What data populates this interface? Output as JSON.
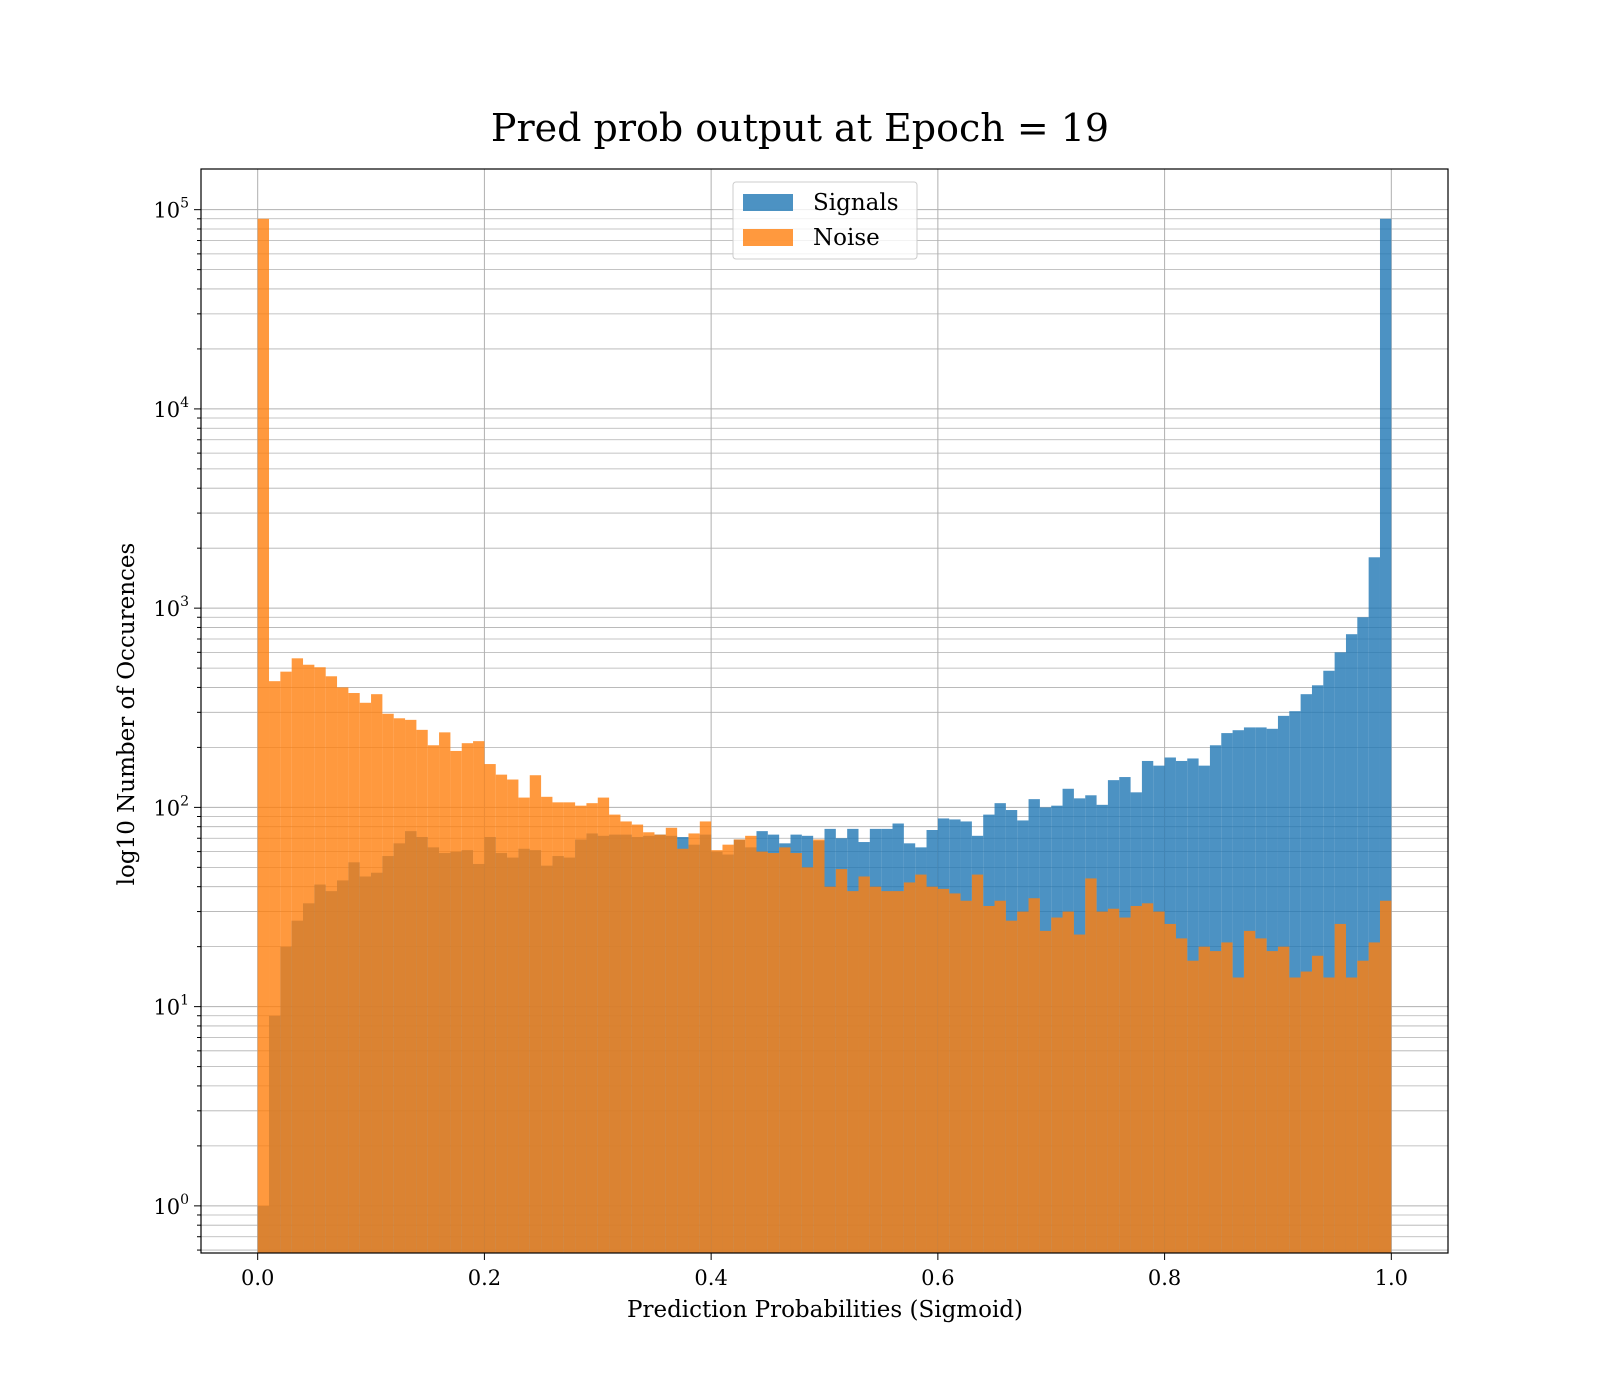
{
  "chart_data": {
    "type": "bar",
    "title": "Pred prob output at Epoch = 19",
    "xlabel": "Prediction Probabilities (Sigmoid)",
    "ylabel": "log10 Number of Occurences",
    "y_scale": "log",
    "xlim": [
      -0.05,
      1.05
    ],
    "ylim": [
      0.58,
      160000
    ],
    "x_ticks": [
      "0.0",
      "0.2",
      "0.4",
      "0.6",
      "0.8",
      "1.0"
    ],
    "y_ticks": [
      {
        "base": "10",
        "exp": "0"
      },
      {
        "base": "10",
        "exp": "1"
      },
      {
        "base": "10",
        "exp": "2"
      },
      {
        "base": "10",
        "exp": "3"
      },
      {
        "base": "10",
        "exp": "4"
      },
      {
        "base": "10",
        "exp": "5"
      }
    ],
    "grid": true,
    "legend_position": "top-center",
    "bin_start": 0.0,
    "bin_width": 0.01,
    "bins": 100,
    "series": [
      {
        "name": "Signals",
        "color": "#1f77b4",
        "values": [
          1,
          9,
          20,
          27,
          33,
          41,
          38,
          43,
          53,
          45,
          47,
          57,
          66,
          76,
          71,
          63,
          59,
          60,
          61,
          52,
          71,
          59,
          56,
          62,
          61,
          51,
          57,
          56,
          69,
          74,
          72,
          73,
          73,
          71,
          72,
          73,
          72,
          71,
          65,
          73,
          60,
          58,
          69,
          63,
          76,
          73,
          66,
          73,
          72,
          68,
          78,
          70,
          78,
          67,
          78,
          78,
          83,
          66,
          63,
          77,
          88,
          87,
          85,
          72,
          92,
          105,
          97,
          86,
          110,
          100,
          102,
          124,
          111,
          115,
          103,
          137,
          142,
          119,
          171,
          162,
          178,
          171,
          176,
          162,
          205,
          236,
          244,
          252,
          252,
          248,
          288,
          304,
          370,
          410,
          485,
          600,
          740,
          900,
          1800,
          90000
        ]
      },
      {
        "name": "Noise",
        "color": "#ff7f0e",
        "values": [
          90000,
          430,
          480,
          560,
          520,
          505,
          455,
          400,
          375,
          335,
          370,
          295,
          280,
          275,
          245,
          205,
          238,
          192,
          210,
          215,
          165,
          146,
          138,
          112,
          145,
          113,
          106,
          106,
          102,
          105,
          112,
          92,
          85,
          82,
          75,
          73,
          79,
          62,
          74,
          85,
          61,
          65,
          69,
          72,
          60,
          59,
          63,
          59,
          50,
          69,
          40,
          49,
          38,
          45,
          40,
          38,
          38,
          42,
          46,
          40,
          39,
          37,
          34,
          46,
          32,
          34,
          27,
          30,
          35,
          24,
          28,
          30,
          23,
          44,
          30,
          31,
          28,
          32,
          33,
          30,
          26,
          22,
          17,
          20,
          19,
          21,
          14,
          24,
          22,
          19,
          20,
          14,
          15,
          18,
          14,
          26,
          14,
          17,
          21,
          34
        ]
      }
    ]
  }
}
